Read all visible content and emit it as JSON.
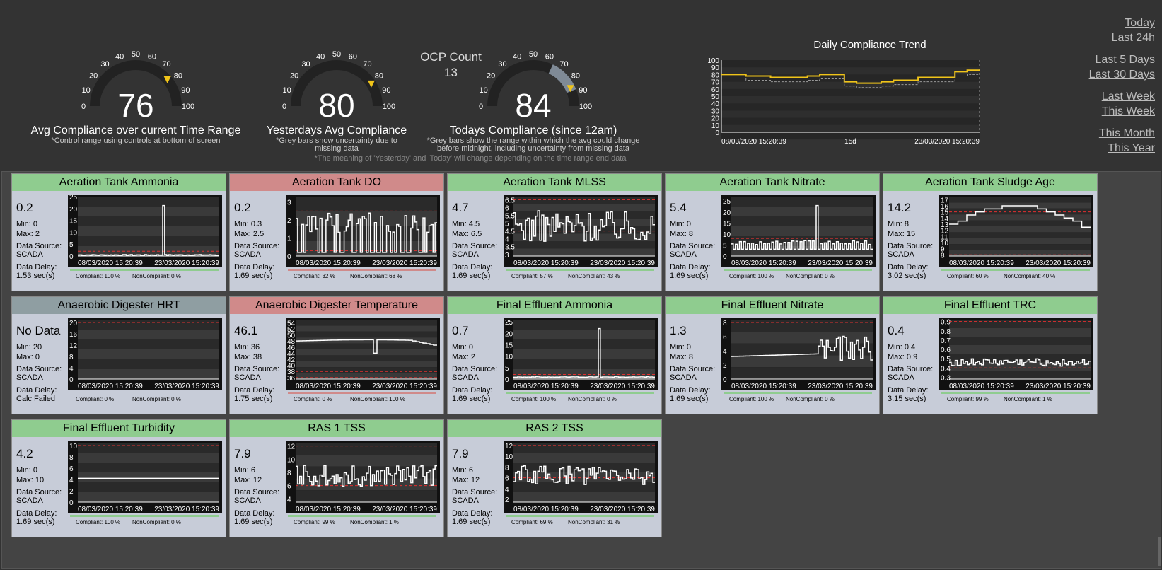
{
  "gauges": [
    {
      "value": "76",
      "label": "Avg Compliance over current Time Range",
      "note1": "*Control range using controls at bottom of screen",
      "note2": ""
    },
    {
      "value": "80",
      "label": "Yesterdays Avg Compliance",
      "note1": "*Grey bars show uncertainty due to",
      "note2": "missing data"
    },
    {
      "value": "84",
      "label": "Todays Compliance (since 12am)",
      "note1": "*Grey bars show the range within which the avg could change",
      "note2": "before midnight, including uncertainty from missing data"
    }
  ],
  "gauge_ticks": [
    "0",
    "10",
    "20",
    "30",
    "40",
    "50",
    "60",
    "70",
    "80",
    "90",
    "100"
  ],
  "ocp": {
    "label": "OCP Count",
    "count": "13"
  },
  "footnote": "*The meaning of 'Yesterday' and 'Today' will change depending on the time range end data",
  "trend": {
    "title": "Daily Compliance Trend",
    "yticks": [
      "100",
      "90",
      "80",
      "70",
      "60",
      "50",
      "40",
      "30",
      "20",
      "10",
      "0"
    ],
    "xstart": "08/03/2020 15:20:39",
    "xmid": "15d",
    "xend": "23/03/2020 15:20:39",
    "chart_data": {
      "type": "line",
      "ylim": [
        0,
        100
      ],
      "series": [
        {
          "values": [
            80,
            80,
            78,
            78,
            76,
            76,
            76,
            78,
            80,
            80,
            70,
            68,
            68,
            70,
            72,
            72,
            76,
            76,
            76,
            84,
            86
          ]
        },
        {
          "values": [
            75,
            75,
            72,
            72,
            70,
            70,
            70,
            72,
            74,
            74,
            64,
            62,
            62,
            64,
            66,
            66,
            70,
            70,
            70,
            78,
            80
          ]
        }
      ]
    }
  },
  "ranges": [
    "Today",
    "Last 24h",
    "Last 5 Days",
    "Last 30 Days",
    "Last Week",
    "This Week",
    "This Month",
    "This Year"
  ],
  "colors": {
    "good": "#8fcc8f",
    "bad": "#d08a8a",
    "grey": "#8f9ea2",
    "accent": "#f0c419"
  },
  "labels": {
    "min": "Min:",
    "max": "Max:",
    "src": "Data Source:",
    "dly": "Data Delay:",
    "cmp": "Compliant:",
    "ncmp": "NonCompliant:",
    "pct": "%",
    "xstart": "08/03/2020 15:20:39",
    "xend": "23/03/2020 15:20:39"
  },
  "tiles": [
    {
      "title": "Aeration Tank Ammonia",
      "status": "good",
      "current": "0.2",
      "min": "0",
      "max": "2",
      "source": "SCADA",
      "delay": "1.53 sec(s)",
      "compliant": "100",
      "noncompliant": "0",
      "yticks": [
        "25",
        "20",
        "15",
        "10",
        "5",
        "0"
      ],
      "ymin": 0,
      "ymax": 25,
      "limits": [
        2
      ],
      "pattern": "spike",
      "base": 0.3,
      "amp": 0.3,
      "barcolor": "#8fcc8f"
    },
    {
      "title": "Aeration Tank DO",
      "status": "bad",
      "current": "0.2",
      "min": "0.3",
      "max": "2.5",
      "source": "SCADA",
      "delay": "1.69 sec(s)",
      "compliant": "32",
      "noncompliant": "68",
      "yticks": [
        "3",
        "2",
        "1",
        "0"
      ],
      "ymin": 0,
      "ymax": 3.3,
      "limits": [
        0.3,
        2.5
      ],
      "pattern": "pulse",
      "base": 0.2,
      "amp": 2.2,
      "barcolor": "#d08a8a"
    },
    {
      "title": "Aeration Tank MLSS",
      "status": "good",
      "current": "4.7",
      "min": "4.5",
      "max": "6.5",
      "source": "SCADA",
      "delay": "1.69 sec(s)",
      "compliant": "57",
      "noncompliant": "43",
      "yticks": [
        "6.5",
        "6",
        "5.5",
        "5",
        "4.5",
        "4",
        "3.5",
        "3"
      ],
      "ymin": 2.9,
      "ymax": 6.7,
      "limits": [
        4.5,
        6.5
      ],
      "pattern": "noise",
      "base": 4.8,
      "amp": 1.0,
      "barcolor": "#8fcc8f"
    },
    {
      "title": "Aeration Tank Nitrate",
      "status": "good",
      "current": "5.4",
      "min": "0",
      "max": "8",
      "source": "SCADA",
      "delay": "1.69 sec(s)",
      "compliant": "100",
      "noncompliant": "0",
      "yticks": [
        "25",
        "20",
        "15",
        "10",
        "5",
        "0"
      ],
      "ymin": 0,
      "ymax": 27,
      "limits": [
        0,
        8
      ],
      "pattern": "square",
      "base": 4,
      "amp": 3,
      "barcolor": "#8fcc8f"
    },
    {
      "title": "Aeration Tank Sludge Age",
      "status": "good",
      "current": "14.2",
      "min": "8",
      "max": "15",
      "source": "SCADA",
      "delay": "3.02 sec(s)",
      "compliant": "60",
      "noncompliant": "40",
      "yticks": [
        "17",
        "16",
        "15",
        "14",
        "13",
        "12",
        "11",
        "10",
        "9",
        "8"
      ],
      "ymin": 7.8,
      "ymax": 17.5,
      "limits": [
        8,
        15
      ],
      "pattern": "step",
      "base": 13,
      "amp": 3,
      "barcolor": "#8fcc8f"
    },
    {
      "title": "Anaerobic Digester HRT",
      "status": "grey",
      "current": "No Data",
      "min": "20",
      "max": "0",
      "source": "SCADA",
      "delay": "Calc Failed",
      "compliant": "0",
      "noncompliant": "0",
      "yticks": [
        "20",
        "16",
        "12",
        "8",
        "4",
        "0"
      ],
      "ymin": 0,
      "ymax": 21,
      "limits": [
        0,
        20
      ],
      "pattern": "none",
      "base": 0,
      "amp": 0,
      "barcolor": "none"
    },
    {
      "title": "Anaerobic Digester Temperature",
      "status": "bad",
      "current": "46.1",
      "min": "36",
      "max": "38",
      "source": "SCADA",
      "delay": "1.75 sec(s)",
      "compliant": "0",
      "noncompliant": "100",
      "yticks": [
        "54",
        "52",
        "50",
        "48",
        "46",
        "44",
        "42",
        "40",
        "38",
        "36"
      ],
      "ymin": 35.5,
      "ymax": 55,
      "limits": [
        36,
        38
      ],
      "pattern": "temp",
      "base": 48,
      "amp": 1,
      "barcolor": "#d08a8a"
    },
    {
      "title": "Final Effluent Ammonia",
      "status": "good",
      "current": "0.7",
      "min": "0",
      "max": "2",
      "source": "SCADA",
      "delay": "1.69 sec(s)",
      "compliant": "100",
      "noncompliant": "0",
      "yticks": [
        "25",
        "20",
        "15",
        "10",
        "5",
        "0"
      ],
      "ymin": 0,
      "ymax": 26,
      "limits": [
        0,
        2
      ],
      "pattern": "spike",
      "base": 0.8,
      "amp": 0.2,
      "barcolor": "#8fcc8f"
    },
    {
      "title": "Final Effluent Nitrate",
      "status": "good",
      "current": "1.3",
      "min": "0",
      "max": "8",
      "source": "SCADA",
      "delay": "1.69 sec(s)",
      "compliant": "100",
      "noncompliant": "0",
      "yticks": [
        "8",
        "6",
        "4",
        "2",
        "0"
      ],
      "ymin": 0,
      "ymax": 8.4,
      "limits": [
        0,
        8
      ],
      "pattern": "nitrate",
      "base": 3.2,
      "amp": 1,
      "barcolor": "#8fcc8f"
    },
    {
      "title": "Final Effluent TRC",
      "status": "good",
      "current": "0.4",
      "min": "0.4",
      "max": "0.9",
      "source": "SCADA",
      "delay": "3.15 sec(s)",
      "compliant": "99",
      "noncompliant": "1",
      "yticks": [
        "0.9",
        "0.8",
        "0.7",
        "0.6",
        "0.5",
        "0.4",
        "0.3"
      ],
      "ymin": 0.28,
      "ymax": 0.92,
      "limits": [
        0.4,
        0.9
      ],
      "pattern": "noise",
      "base": 0.46,
      "amp": 0.04,
      "barcolor": "#8fcc8f"
    },
    {
      "title": "Final Effluent Turbidity",
      "status": "good",
      "current": "4.2",
      "min": "0",
      "max": "10",
      "source": "SCADA",
      "delay": "1.69 sec(s)",
      "compliant": "100",
      "noncompliant": "0",
      "yticks": [
        "10",
        "8",
        "6",
        "4",
        "2",
        "0"
      ],
      "ymin": 0,
      "ymax": 10.5,
      "limits": [
        0,
        10
      ],
      "pattern": "flat",
      "base": 4.2,
      "amp": 0,
      "barcolor": "#8fcc8f"
    },
    {
      "title": "RAS 1 TSS",
      "status": "good",
      "current": "7.9",
      "min": "6",
      "max": "12",
      "source": "SCADA",
      "delay": "1.69 sec(s)",
      "compliant": "99",
      "noncompliant": "1",
      "yticks": [
        "12",
        "10",
        "8",
        "6",
        "4"
      ],
      "ymin": 3.5,
      "ymax": 12.5,
      "limits": [
        6,
        12
      ],
      "pattern": "noise",
      "base": 7.5,
      "amp": 1.6,
      "barcolor": "#8fcc8f"
    },
    {
      "title": "RAS 2 TSS",
      "status": "good",
      "current": "7.9",
      "min": "6",
      "max": "12",
      "source": "SCADA",
      "delay": "1.69 sec(s)",
      "compliant": "69",
      "noncompliant": "31",
      "yticks": [
        "12",
        "10",
        "8",
        "6",
        "4",
        "2"
      ],
      "ymin": 1.5,
      "ymax": 12.5,
      "limits": [
        6,
        12
      ],
      "pattern": "noise",
      "base": 6.5,
      "amp": 1.8,
      "barcolor": "#8fcc8f"
    }
  ]
}
